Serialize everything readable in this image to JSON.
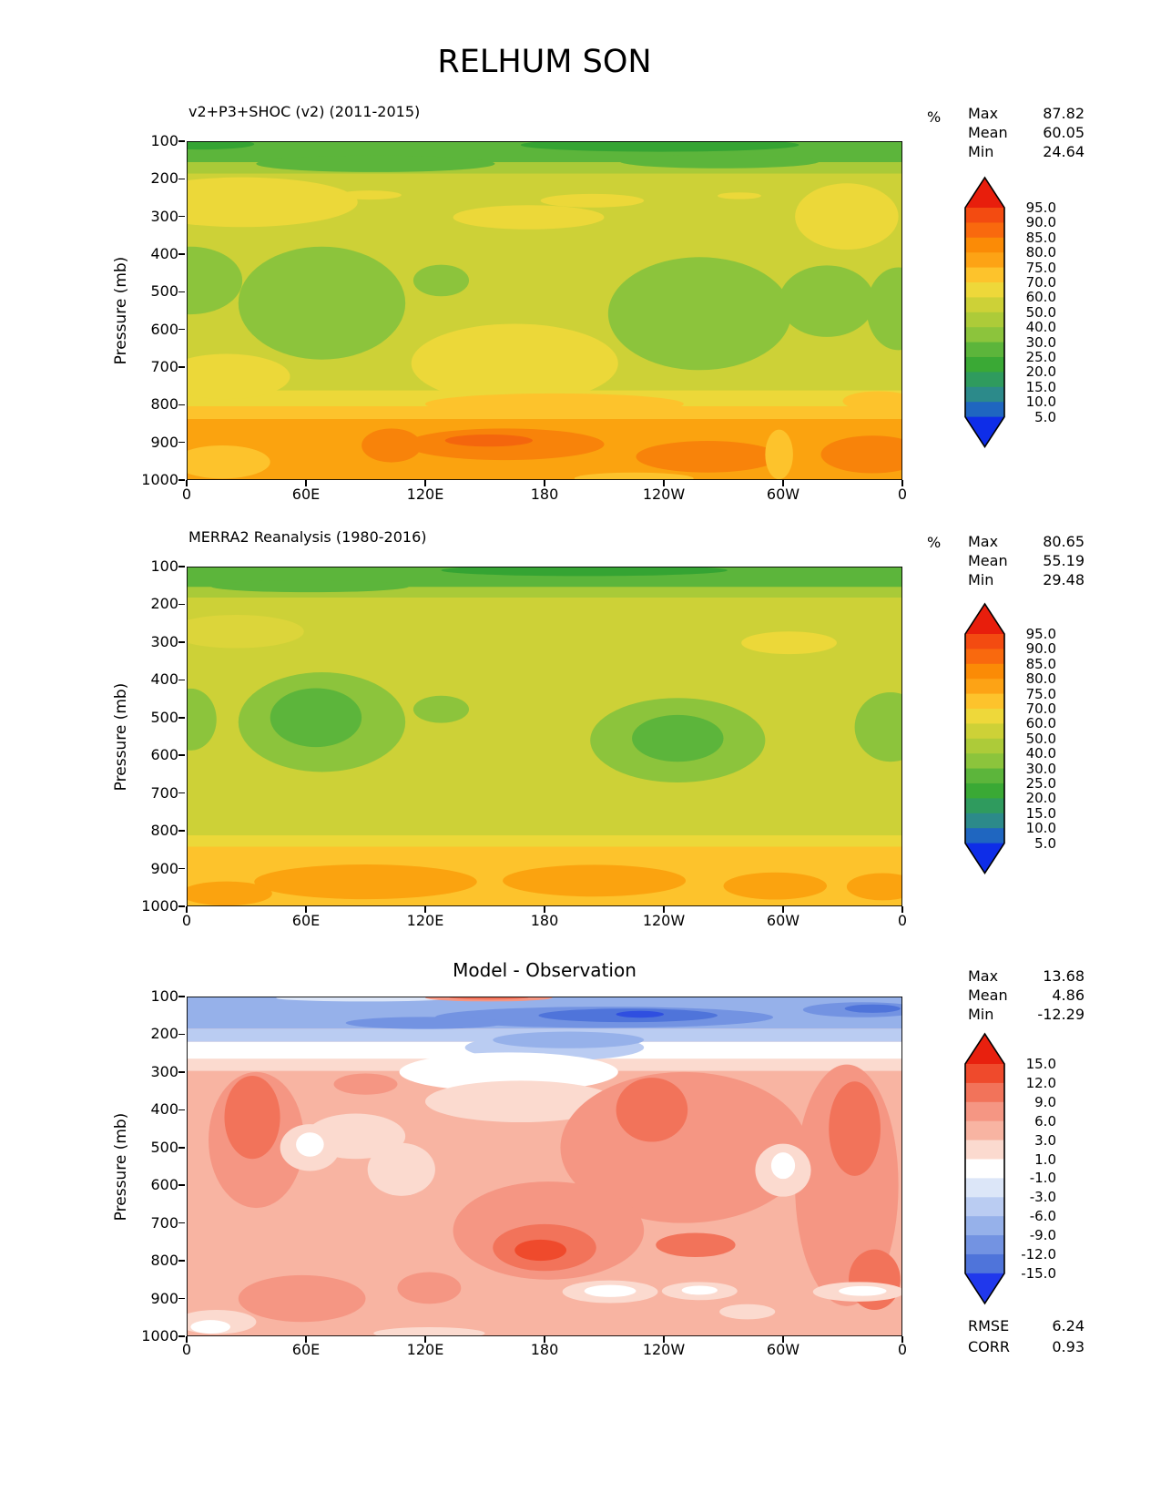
{
  "chart_data": {
    "type": "heatmap",
    "title": "RELHUM SON",
    "ylabel": "Pressure (mb)",
    "xlabel": "",
    "x_range": [
      0,
      360
    ],
    "y_range": [
      100,
      1000
    ],
    "y_units": "mb",
    "grid": false,
    "x_ticks": {
      "values": [
        0,
        60,
        120,
        180,
        240,
        300,
        360
      ],
      "labels": [
        "0",
        "60E",
        "120E",
        "180",
        "120W",
        "60W",
        "0"
      ]
    },
    "y_ticks": {
      "values": [
        100,
        200,
        300,
        400,
        500,
        600,
        700,
        800,
        900,
        1000
      ],
      "labels": [
        "100",
        "200",
        "300",
        "400",
        "500",
        "600",
        "700",
        "800",
        "900",
        "1000"
      ]
    },
    "panels": [
      {
        "title": "v2+P3+SHOC (v2) (2011-2015)",
        "units": "%",
        "stats": [
          [
            "Max",
            "87.82"
          ],
          [
            "Mean",
            "60.05"
          ],
          [
            "Min",
            "24.64"
          ]
        ],
        "colorbar": {
          "tick_labels": [
            "95.0",
            "90.0",
            "85.0",
            "80.0",
            "75.0",
            "70.0",
            "60.0",
            "50.0",
            "40.0",
            "30.0",
            "25.0",
            "20.0",
            "15.0",
            "10.0",
            "5.0"
          ],
          "colors": [
            "#e81e0c",
            "#f34b11",
            "#f9690e",
            "#fb8b06",
            "#fda315",
            "#fdc32c",
            "#eed83a",
            "#cdd137",
            "#adcb39",
            "#8cc43c",
            "#5cb53b",
            "#3aa935",
            "#2f9b5e",
            "#2c8a8a",
            "#1f66c0",
            "#0e2de8"
          ]
        },
        "field": {
          "bg": "#cdd137",
          "shapes": [
            [
              "r",
              0,
              100,
              360,
              56,
              "#5cb53b"
            ],
            [
              "r",
              0,
              156,
              360,
              30,
              "#a9ca38"
            ],
            [
              "e",
              95,
              160,
              60,
              22,
              "#5cb53b"
            ],
            [
              "e",
              268,
              154,
              50,
              18,
              "#5cb53b"
            ],
            [
              "e",
              238,
              110,
              70,
              18,
              "#35a433"
            ],
            [
              "e",
              8,
              108,
              26,
              14,
              "#35a433"
            ],
            [
              "e",
              28,
              262,
              58,
              66,
              "#ecd839"
            ],
            [
              "e",
              92,
              243,
              16,
              12,
              "#ecd839"
            ],
            [
              "e",
              172,
              302,
              38,
              32,
              "#ecd839"
            ],
            [
              "e",
              204,
              258,
              26,
              18,
              "#ecd839"
            ],
            [
              "e",
              278,
              245,
              11,
              9,
              "#ecd839"
            ],
            [
              "e",
              332,
              300,
              26,
              88,
              "#ecd839"
            ],
            [
              "e",
              2,
              470,
              26,
              90,
              "#8cc43c"
            ],
            [
              "e",
              68,
              530,
              42,
              150,
              "#8cc43c"
            ],
            [
              "e",
              128,
              470,
              14,
              42,
              "#8cc43c"
            ],
            [
              "e",
              258,
              558,
              46,
              150,
              "#8cc43c"
            ],
            [
              "e",
              322,
              525,
              24,
              95,
              "#8cc43c"
            ],
            [
              "e",
              358,
              545,
              16,
              110,
              "#8cc43c"
            ],
            [
              "e",
              165,
              690,
              52,
              105,
              "#ecd839"
            ],
            [
              "r",
              0,
              762,
              360,
              42,
              "#ecd839"
            ],
            [
              "e",
              20,
              725,
              32,
              60,
              "#ecd839"
            ],
            [
              "r",
              0,
              804,
              360,
              34,
              "#fdc32c"
            ],
            [
              "e",
              185,
              798,
              65,
              28,
              "#fdc32c"
            ],
            [
              "e",
              348,
              790,
              18,
              26,
              "#fdc32c"
            ],
            [
              "r",
              0,
              838,
              360,
              162,
              "#fba30f"
            ],
            [
              "e",
              160,
              905,
              50,
              42,
              "#f8830a"
            ],
            [
              "e",
              103,
              908,
              15,
              45,
              "#f8830a"
            ],
            [
              "e",
              262,
              938,
              36,
              42,
              "#f8830a"
            ],
            [
              "e",
              345,
              932,
              26,
              50,
              "#f8830a"
            ],
            [
              "e",
              152,
              895,
              22,
              16,
              "#f4660d"
            ],
            [
              "e",
              18,
              952,
              24,
              44,
              "#fdc32c"
            ],
            [
              "e",
              298,
              932,
              7,
              66,
              "#fdc32c"
            ],
            [
              "e",
              225,
              996,
              30,
              16,
              "#fdc32c"
            ]
          ]
        }
      },
      {
        "title": "MERRA2 Reanalysis (1980-2016)",
        "units": "%",
        "stats": [
          [
            "Max",
            "80.65"
          ],
          [
            "Mean",
            "55.19"
          ],
          [
            "Min",
            "29.48"
          ]
        ],
        "colorbar": {
          "tick_labels": [
            "95.0",
            "90.0",
            "85.0",
            "80.0",
            "75.0",
            "70.0",
            "60.0",
            "50.0",
            "40.0",
            "30.0",
            "25.0",
            "20.0",
            "15.0",
            "10.0",
            "5.0"
          ],
          "colors": [
            "#e81e0c",
            "#f34b11",
            "#f9690e",
            "#fb8b06",
            "#fda315",
            "#fdc32c",
            "#eed83a",
            "#cdd137",
            "#adcb39",
            "#8cc43c",
            "#5cb53b",
            "#3aa935",
            "#2f9b5e",
            "#2c8a8a",
            "#1f66c0",
            "#0e2de8"
          ]
        },
        "field": {
          "bg": "#cdd137",
          "shapes": [
            [
              "r",
              0,
              100,
              360,
              54,
              "#5cb53b"
            ],
            [
              "r",
              0,
              154,
              360,
              28,
              "#a9ca38"
            ],
            [
              "e",
              200,
              110,
              72,
              15,
              "#35a433"
            ],
            [
              "e",
              62,
              152,
              50,
              16,
              "#5cb53b"
            ],
            [
              "e",
              25,
              272,
              34,
              44,
              "#dcd53a"
            ],
            [
              "e",
              303,
              302,
              24,
              30,
              "#ecd839"
            ],
            [
              "e",
              68,
              512,
              42,
              132,
              "#8cc43c"
            ],
            [
              "e",
              65,
              500,
              23,
              78,
              "#5cb53b"
            ],
            [
              "e",
              128,
              478,
              14,
              36,
              "#8cc43c"
            ],
            [
              "e",
              247,
              560,
              44,
              112,
              "#8cc43c"
            ],
            [
              "e",
              247,
              555,
              23,
              62,
              "#5cb53b"
            ],
            [
              "e",
              354,
              525,
              18,
              92,
              "#8cc43c"
            ],
            [
              "e",
              2,
              505,
              13,
              82,
              "#8cc43c"
            ],
            [
              "r",
              0,
              812,
              360,
              30,
              "#ecd839"
            ],
            [
              "r",
              0,
              842,
              360,
              158,
              "#fdc32c"
            ],
            [
              "e",
              90,
              935,
              56,
              46,
              "#fba30f"
            ],
            [
              "e",
              205,
              932,
              46,
              42,
              "#fba30f"
            ],
            [
              "e",
              296,
              946,
              26,
              36,
              "#fba30f"
            ],
            [
              "e",
              20,
              966,
              23,
              32,
              "#fba30f"
            ],
            [
              "e",
              350,
              948,
              18,
              36,
              "#fba30f"
            ]
          ]
        }
      },
      {
        "title": "Model - Observation",
        "units": "",
        "stats": [
          [
            "Max",
            "13.68"
          ],
          [
            "Mean",
            "4.86"
          ],
          [
            "Min",
            "-12.29"
          ]
        ],
        "metrics": [
          [
            "RMSE",
            "6.24"
          ],
          [
            "CORR",
            "0.93"
          ]
        ],
        "colorbar": {
          "tick_labels": [
            "15.0",
            "12.0",
            "9.0",
            "6.0",
            "3.0",
            "1.0",
            "-1.0",
            "-3.0",
            "-6.0",
            "-9.0",
            "-12.0",
            "-15.0"
          ],
          "colors": [
            "#e8200e",
            "#ef4a2c",
            "#f2735a",
            "#f59683",
            "#f8b4a2",
            "#fbdacf",
            "#ffffff",
            "#dce6f8",
            "#baccf2",
            "#96b1ea",
            "#7393e2",
            "#4f74da",
            "#2038ec"
          ]
        },
        "field": {
          "bg": "#f8b4a2",
          "shapes": [
            [
              "r",
              0,
              100,
              360,
              85,
              "#96b1ea"
            ],
            [
              "r",
              0,
              185,
              360,
              35,
              "#baccf2"
            ],
            [
              "r",
              0,
              220,
              360,
              45,
              "#ffffff"
            ],
            [
              "r",
              0,
              265,
              360,
              32,
              "#fbdacf"
            ],
            [
              "e",
              90,
              104,
              45,
              9,
              "#dce6f8"
            ],
            [
              "e",
              152,
              103,
              32,
              10,
              "#f59683"
            ],
            [
              "e",
              152,
              102,
              20,
              6,
              "#f2735a"
            ],
            [
              "e",
              210,
              155,
              85,
              28,
              "#7393e2"
            ],
            [
              "e",
              120,
              170,
              40,
              16,
              "#7393e2"
            ],
            [
              "e",
              340,
              135,
              30,
              20,
              "#7393e2"
            ],
            [
              "e",
              222,
              150,
              45,
              18,
              "#4f74da"
            ],
            [
              "e",
              228,
              147,
              12,
              9,
              "#2f4fe0"
            ],
            [
              "e",
              345,
              132,
              14,
              11,
              "#4f74da"
            ],
            [
              "e",
              185,
              235,
              45,
              35,
              "#baccf2"
            ],
            [
              "e",
              192,
              215,
              38,
              22,
              "#96b1ea"
            ],
            [
              "e",
              162,
              300,
              55,
              52,
              "#ffffff"
            ],
            [
              "e",
              168,
              378,
              48,
              55,
              "#fbdacf"
            ],
            [
              "e",
              35,
              480,
              24,
              180,
              "#f59683"
            ],
            [
              "e",
              33,
              420,
              14,
              110,
              "#f2735a"
            ],
            [
              "e",
              90,
              332,
              16,
              28,
              "#f59683"
            ],
            [
              "e",
              250,
              500,
              62,
              200,
              "#f59683"
            ],
            [
              "e",
              234,
              400,
              18,
              85,
              "#f2735a"
            ],
            [
              "e",
              332,
              600,
              26,
              320,
              "#f59683"
            ],
            [
              "e",
              336,
              450,
              13,
              125,
              "#f2735a"
            ],
            [
              "e",
              182,
              720,
              48,
              130,
              "#f59683"
            ],
            [
              "e",
              180,
              765,
              26,
              62,
              "#f2735a"
            ],
            [
              "e",
              178,
              772,
              13,
              28,
              "#ef4a2c"
            ],
            [
              "e",
              256,
              758,
              20,
              32,
              "#f2735a"
            ],
            [
              "e",
              58,
              900,
              32,
              62,
              "#f59683"
            ],
            [
              "e",
              122,
              872,
              16,
              42,
              "#f59683"
            ],
            [
              "e",
              346,
              850,
              13,
              80,
              "#f2735a"
            ],
            [
              "e",
              85,
              470,
              25,
              60,
              "#fbdacf"
            ],
            [
              "e",
              62,
              500,
              15,
              62,
              "#fbdacf"
            ],
            [
              "e",
              62,
              492,
              7,
              32,
              "#ffffff"
            ],
            [
              "e",
              108,
              558,
              17,
              70,
              "#fbdacf"
            ],
            [
              "e",
              300,
              560,
              14,
              70,
              "#fbdacf"
            ],
            [
              "e",
              300,
              548,
              6,
              35,
              "#ffffff"
            ],
            [
              "e",
              213,
              882,
              24,
              30,
              "#fbdacf"
            ],
            [
              "e",
              213,
              880,
              13,
              16,
              "#ffffff"
            ],
            [
              "e",
              258,
              880,
              19,
              24,
              "#fbdacf"
            ],
            [
              "e",
              258,
              878,
              9,
              12,
              "#ffffff"
            ],
            [
              "e",
              338,
              882,
              23,
              26,
              "#fbdacf"
            ],
            [
              "e",
              340,
              880,
              12,
              13,
              "#ffffff"
            ],
            [
              "e",
              15,
              962,
              20,
              32,
              "#fbdacf"
            ],
            [
              "e",
              12,
              975,
              10,
              18,
              "#ffffff"
            ],
            [
              "e",
              122,
              992,
              28,
              16,
              "#fbdacf"
            ],
            [
              "e",
              282,
              935,
              14,
              20,
              "#fbdacf"
            ]
          ]
        }
      }
    ]
  }
}
